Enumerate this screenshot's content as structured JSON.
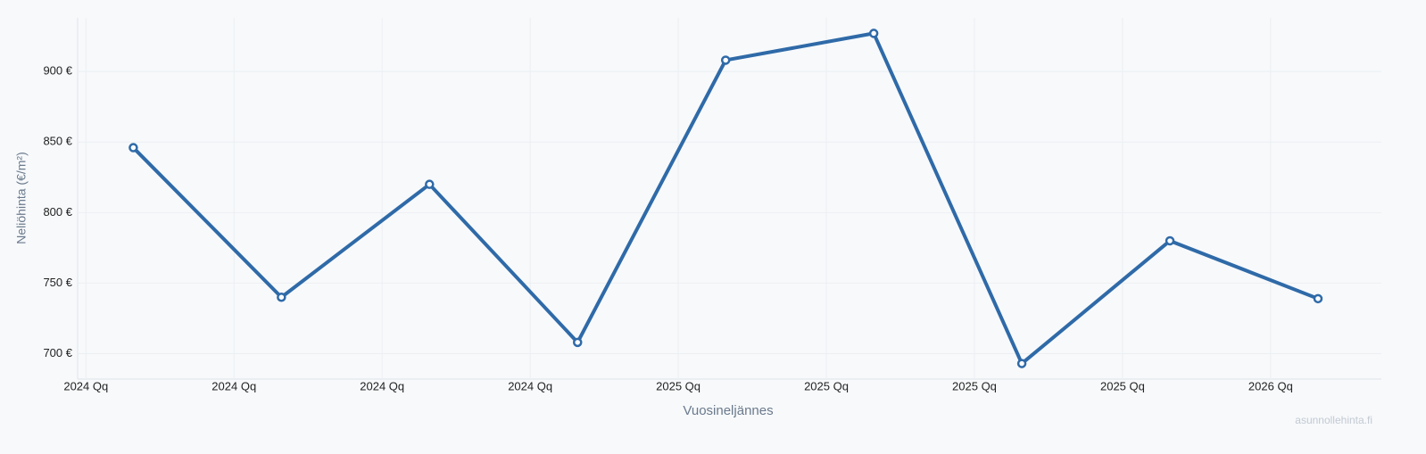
{
  "chart_data": {
    "type": "line",
    "x_label": "Vuosineljännes",
    "y_label": "Neliöhinta (€/m²)",
    "watermark": "asunnollehinta.fi",
    "x": [
      2024.08,
      2024.33,
      2024.58,
      2024.83,
      2025.08,
      2025.33,
      2025.58,
      2025.83,
      2026.08
    ],
    "series": [
      {
        "color": "#2f6aa8",
        "values": [
          846,
          740,
          820,
          708,
          908,
          927,
          693,
          780,
          739
        ]
      }
    ],
    "xlim": [
      2023.986,
      2026.187
    ],
    "xticks": [
      {
        "value": 2024,
        "label": "2024 Qq"
      },
      {
        "value": 2024.25,
        "label": "2024 Qq"
      },
      {
        "value": 2024.5,
        "label": "2024 Qq"
      },
      {
        "value": 2024.75,
        "label": "2024 Qq"
      },
      {
        "value": 2025,
        "label": "2025 Qq"
      },
      {
        "value": 2025.25,
        "label": "2025 Qq"
      },
      {
        "value": 2025.5,
        "label": "2025 Qq"
      },
      {
        "value": 2025.75,
        "label": "2025 Qq"
      },
      {
        "value": 2026,
        "label": "2026 Qq"
      }
    ],
    "ylim": [
      682,
      938
    ],
    "yticks": [
      {
        "value": 700,
        "label": "700 €"
      },
      {
        "value": 750,
        "label": "750 €"
      },
      {
        "value": 800,
        "label": "800 €"
      },
      {
        "value": 850,
        "label": "850 €"
      },
      {
        "value": 900,
        "label": "900 €"
      }
    ],
    "grid": true
  }
}
